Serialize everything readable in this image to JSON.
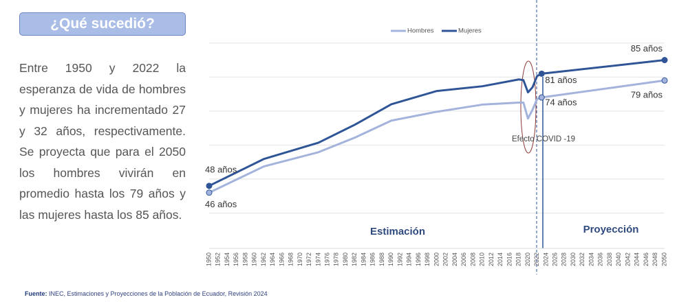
{
  "heading": "¿Qué sucedió?",
  "body": "Entre 1950 y 2022 la esperanza de vida de hombres y mujeres ha incrementado 27 y 32 años, respectivamente. Se proyecta que para el 2050 los hombres vivirán en promedio hasta los 79 años y las mujeres hasta los 85 años.",
  "source_label": "Fuente:",
  "source": "INEC, Estimaciones y Proyecciones de la Población de Ecuador, Revisión 2024",
  "chart_data": {
    "type": "line",
    "x": [
      1950,
      1962,
      1974,
      1982,
      1990,
      2000,
      2010,
      2018,
      2019,
      2020,
      2021,
      2022,
      2023,
      2050
    ],
    "series": [
      {
        "name": "Hombres",
        "color": "#a3b3dc",
        "values": [
          46,
          53.7,
          57.9,
          62.2,
          67.2,
          69.8,
          71.9,
          72.5,
          72.5,
          67.8,
          70.4,
          73.5,
          74,
          79
        ],
        "value_labels": [
          "46 años",
          null,
          null,
          null,
          null,
          null,
          null,
          null,
          null,
          null,
          null,
          null,
          "74 años",
          "79 años"
        ]
      },
      {
        "name": "Mujeres",
        "color": "#2f5597",
        "values": [
          48,
          55.9,
          60.7,
          66,
          72,
          75.9,
          77.3,
          79.3,
          79.1,
          75.5,
          77,
          80.3,
          81,
          85
        ],
        "value_labels": [
          "48 años",
          null,
          null,
          null,
          null,
          null,
          null,
          null,
          null,
          null,
          null,
          null,
          "81 años",
          "85 años"
        ]
      }
    ],
    "annotations": [
      "Efecto COVID -19",
      "Estimación",
      "Proyección"
    ],
    "xlim": [
      1950,
      2050
    ],
    "xticks": [
      1950,
      1952,
      1954,
      1956,
      1958,
      1960,
      1962,
      1964,
      1966,
      1968,
      1970,
      1972,
      1974,
      1976,
      1978,
      1980,
      1982,
      1984,
      1986,
      1988,
      1990,
      1992,
      1994,
      1996,
      1998,
      2000,
      2002,
      2004,
      2006,
      2008,
      2010,
      2012,
      2014,
      2016,
      2018,
      2020,
      2022,
      2024,
      2026,
      2028,
      2030,
      2032,
      2034,
      2036,
      2038,
      2040,
      2042,
      2044,
      2046,
      2048,
      2050
    ],
    "ylim": [
      30,
      95
    ],
    "grid_values": [
      40,
      50,
      60,
      70,
      80,
      90
    ],
    "grid": true
  }
}
